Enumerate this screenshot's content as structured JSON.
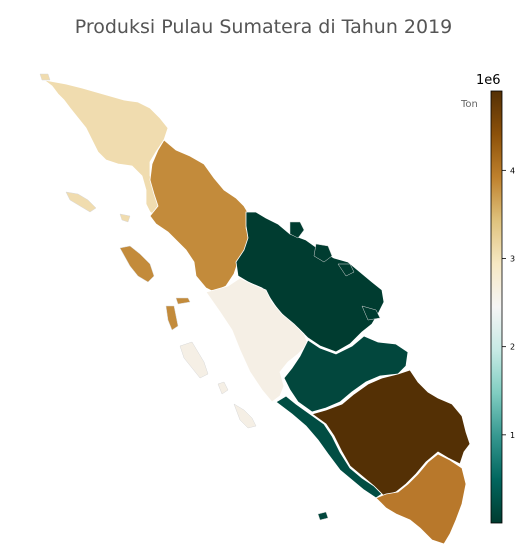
{
  "title": "Produksi Pulau Sumatera di Tahun 2019",
  "colorbar": {
    "label": "Ton",
    "exponent": "1e6",
    "ticks": [
      "1",
      "2",
      "3",
      "4"
    ],
    "tick_values": [
      1000000,
      2000000,
      3000000,
      4000000
    ],
    "min": 0,
    "max": 4900000,
    "colormap": "BrBG_r",
    "stops": [
      "#003c30",
      "#01665e",
      "#35978f",
      "#80cdc1",
      "#c7eae5",
      "#f5f5f5",
      "#f6e8c3",
      "#dfc27d",
      "#bf812d",
      "#8c510a",
      "#543005"
    ]
  },
  "chart_data": {
    "type": "choropleth",
    "region": "Pulau Sumatera",
    "year": 2019,
    "value_unit": "Ton",
    "areas": [
      {
        "id": "aceh",
        "value": 3300000,
        "color": "#f0dcaf"
      },
      {
        "id": "sumatera-utara",
        "value": 4100000,
        "color": "#c38b3b"
      },
      {
        "id": "riau",
        "value": 0,
        "color": "#003c30"
      },
      {
        "id": "sumatera-barat",
        "value": 2800000,
        "color": "#f5efe5"
      },
      {
        "id": "jambi",
        "value": 300000,
        "color": "#02473d"
      },
      {
        "id": "bengkulu",
        "value": 300000,
        "color": "#014d43"
      },
      {
        "id": "sumatera-selatan",
        "value": 4900000,
        "color": "#543005"
      },
      {
        "id": "lampung",
        "value": 4200000,
        "color": "#b8782b"
      }
    ]
  }
}
